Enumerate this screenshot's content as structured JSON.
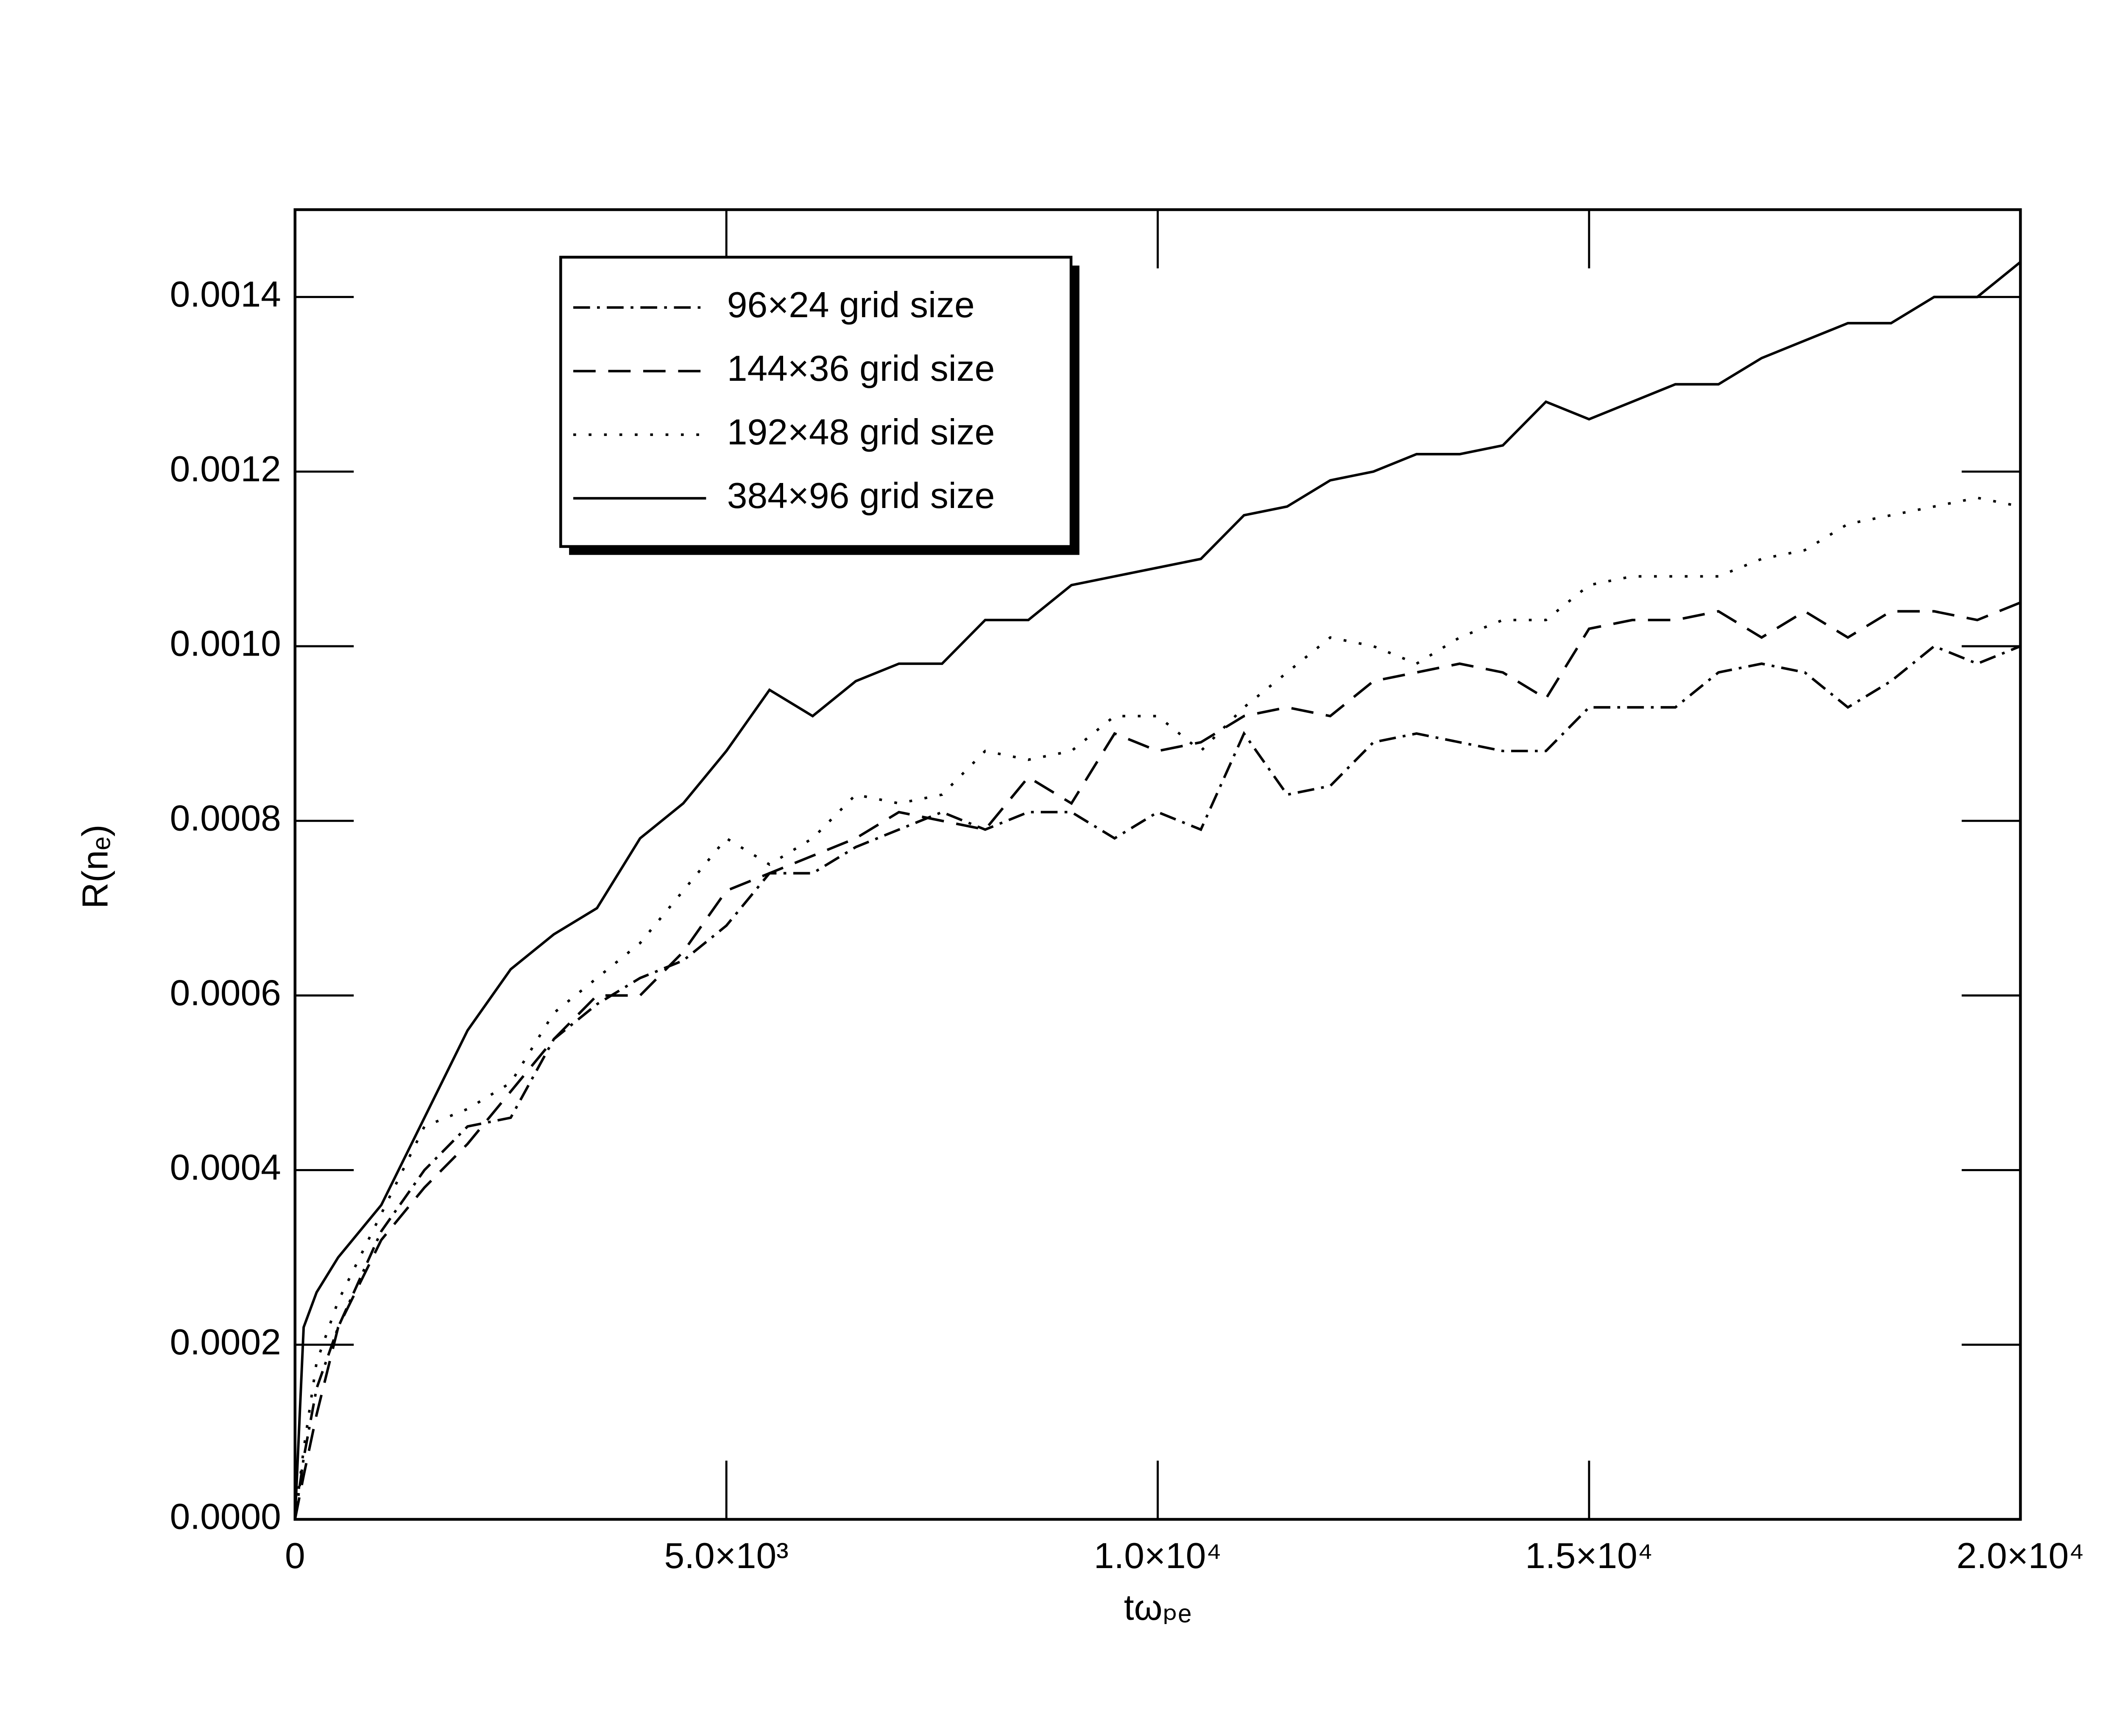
{
  "chart_data": {
    "type": "line",
    "xlabel": "tωₚₑ",
    "ylabel": "R(nₑ)",
    "x": [
      0,
      100,
      250,
      500,
      1000,
      1500,
      2000,
      2500,
      3000,
      3500,
      4000,
      4500,
      5000,
      5500,
      6000,
      6500,
      7000,
      7500,
      8000,
      8500,
      9000,
      9500,
      10000,
      10500,
      11000,
      11500,
      12000,
      12500,
      13000,
      13500,
      14000,
      14500,
      15000,
      15500,
      16000,
      16500,
      17000,
      17500,
      18000,
      18500,
      19000,
      19500,
      20000
    ],
    "series": [
      {
        "name": "96×24 grid size",
        "color": "#000000",
        "style": "dashdot",
        "values": [
          0,
          7e-05,
          0.00015,
          0.00022,
          0.00033,
          0.0004,
          0.00045,
          0.00046,
          0.00055,
          0.00059,
          0.00062,
          0.00064,
          0.00068,
          0.00074,
          0.00074,
          0.00077,
          0.00079,
          0.00081,
          0.00079,
          0.00081,
          0.00081,
          0.00078,
          0.00081,
          0.00079,
          0.0009,
          0.00083,
          0.00084,
          0.00089,
          0.0009,
          0.00089,
          0.00088,
          0.00088,
          0.00093,
          0.00093,
          0.00093,
          0.00097,
          0.00098,
          0.00097,
          0.00093,
          0.00096,
          0.001,
          0.00098,
          0.001
        ]
      },
      {
        "name": "144×36 grid size",
        "color": "#000000",
        "style": "dashed",
        "values": [
          0,
          5e-05,
          0.00012,
          0.00022,
          0.00032,
          0.00038,
          0.00043,
          0.00049,
          0.00055,
          0.0006,
          0.0006,
          0.00065,
          0.00072,
          0.00074,
          0.00076,
          0.00078,
          0.00081,
          0.0008,
          0.00079,
          0.00085,
          0.00082,
          0.0009,
          0.00088,
          0.00089,
          0.00092,
          0.00093,
          0.00092,
          0.00096,
          0.00097,
          0.00098,
          0.00097,
          0.00094,
          0.00102,
          0.00103,
          0.00103,
          0.00104,
          0.00101,
          0.00104,
          0.00101,
          0.00104,
          0.00104,
          0.00103,
          0.00105
        ]
      },
      {
        "name": "192×48 grid size",
        "color": "#000000",
        "style": "dotted",
        "values": [
          0,
          8e-05,
          0.00018,
          0.00025,
          0.00035,
          0.00045,
          0.00047,
          0.0005,
          0.00058,
          0.00062,
          0.00066,
          0.00072,
          0.00078,
          0.00075,
          0.00078,
          0.00083,
          0.00082,
          0.00083,
          0.00088,
          0.00087,
          0.00088,
          0.00092,
          0.00092,
          0.00088,
          0.00093,
          0.00097,
          0.00101,
          0.001,
          0.00098,
          0.00101,
          0.00103,
          0.00103,
          0.00107,
          0.00108,
          0.00108,
          0.00108,
          0.0011,
          0.00111,
          0.00114,
          0.00115,
          0.00116,
          0.00117,
          0.00116
        ]
      },
      {
        "name": "384×96 grid size",
        "color": "#000000",
        "style": "solid",
        "values": [
          0,
          0.00022,
          0.00026,
          0.0003,
          0.00036,
          0.00046,
          0.00056,
          0.00063,
          0.00067,
          0.0007,
          0.00078,
          0.00082,
          0.00088,
          0.00095,
          0.00092,
          0.00096,
          0.00098,
          0.00098,
          0.00103,
          0.00103,
          0.00107,
          0.00108,
          0.00109,
          0.0011,
          0.00115,
          0.00116,
          0.00119,
          0.0012,
          0.00122,
          0.00122,
          0.00123,
          0.00128,
          0.00126,
          0.00128,
          0.0013,
          0.0013,
          0.00133,
          0.00135,
          0.00137,
          0.00137,
          0.0014,
          0.0014,
          0.00144
        ]
      }
    ],
    "xlim": [
      0,
      20000
    ],
    "xticks": [
      0,
      {
        "value": 5000,
        "label": "5.0×10³"
      },
      {
        "value": 10000,
        "label": "1.0×10⁴"
      },
      {
        "value": 15000,
        "label": "1.5×10⁴"
      },
      {
        "value": 20000,
        "label": "2.0×10⁴"
      }
    ],
    "ylim": [
      0,
      0.0015
    ],
    "yticks": [
      {
        "value": 0,
        "label": "0.0000"
      },
      {
        "value": 0.0002,
        "label": "0.0002"
      },
      {
        "value": 0.0004,
        "label": "0.0004"
      },
      {
        "value": 0.0006,
        "label": "0.0006"
      },
      {
        "value": 0.0008,
        "label": "0.0008"
      },
      {
        "value": 0.001,
        "label": "0.0010"
      },
      {
        "value": 0.0012,
        "label": "0.0012"
      },
      {
        "value": 0.0014,
        "label": "0.0014"
      }
    ],
    "grid": false,
    "legend": "upper-left"
  }
}
